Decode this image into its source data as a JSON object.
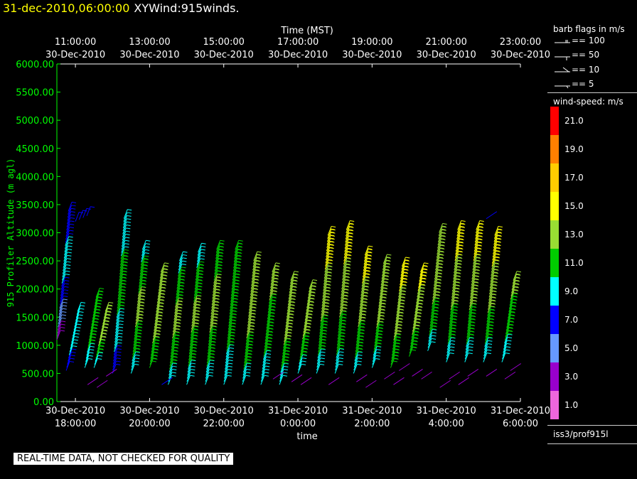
{
  "header": {
    "date": "31-dec-2010,06:00:00",
    "product": "XYWind:915winds."
  },
  "top_axis_title": "Time (MST)",
  "bottom_axis_title": "time",
  "banner": "REAL-TIME DATA, NOT CHECKED FOR QUALITY",
  "legend": {
    "barb_title": "barb flags in m/s",
    "barb_items": [
      "== 100",
      "== 50",
      "== 10",
      "== 5"
    ],
    "speed_title": "wind-speed: m/s",
    "speed_labels": [
      "21.0",
      "19.0",
      "17.0",
      "15.0",
      "13.0",
      "11.0",
      "9.0",
      "7.0",
      "5.0",
      "3.0",
      "1.0"
    ],
    "speed_colors": [
      "#ff0000",
      "#ff7f00",
      "#ffcc00",
      "#ffff00",
      "#99dd33",
      "#00cc00",
      "#00ffff",
      "#0000ff",
      "#6699ff",
      "#9900cc",
      "#ee66dd"
    ],
    "source": "iss3/prof915l"
  },
  "chart_data": {
    "type": "wind-barb",
    "title": "XYWind:915winds.",
    "xlabel": "time",
    "x2label": "Time (MST)",
    "ylabel": "915 Profiler Altitude (m agl)",
    "ylim": [
      0,
      6000
    ],
    "yticks": [
      "0.00",
      "500.00",
      "1000.00",
      "1500.00",
      "2000.00",
      "2500.00",
      "3000.00",
      "3500.00",
      "4000.00",
      "4500.00",
      "5000.00",
      "5500.00",
      "6000.00"
    ],
    "xlim_hours_utc": [
      17.5,
      30.0
    ],
    "bottom_ticks": [
      [
        "30-Dec-2010",
        "18:00:00"
      ],
      [
        "30-Dec-2010",
        "20:00:00"
      ],
      [
        "30-Dec-2010",
        "22:00:00"
      ],
      [
        "31-Dec-2010",
        "0:00:00"
      ],
      [
        "31-Dec-2010",
        "2:00:00"
      ],
      [
        "31-Dec-2010",
        "4:00:00"
      ],
      [
        "31-Dec-2010",
        "6:00:00"
      ]
    ],
    "top_ticks": [
      [
        "11:00:00",
        "30-Dec-2010"
      ],
      [
        "13:00:00",
        "30-Dec-2010"
      ],
      [
        "15:00:00",
        "30-Dec-2010"
      ],
      [
        "17:00:00",
        "30-Dec-2010"
      ],
      [
        "19:00:00",
        "30-Dec-2010"
      ],
      [
        "21:00:00",
        "30-Dec-2010"
      ],
      [
        "23:00:00",
        "30-Dec-2010"
      ]
    ],
    "profiles": [
      {
        "t": 17.5,
        "top": 3380,
        "bottom": 1100,
        "low": 3,
        "mid": 9,
        "high": 7
      },
      {
        "t": 17.75,
        "top": 1600,
        "bottom": 550,
        "low": 7,
        "mid": 9,
        "high": 9
      },
      {
        "t": 18.0,
        "top": 3300,
        "bottom": 3200,
        "low": 7,
        "mid": 7,
        "high": 7
      },
      {
        "t": 18.25,
        "top": 1850,
        "bottom": 600,
        "low": 9,
        "mid": 11,
        "high": 11
      },
      {
        "t": 18.5,
        "top": 1600,
        "bottom": 600,
        "low": 9,
        "mid": 13,
        "high": 13
      },
      {
        "t": 19.0,
        "top": 3250,
        "bottom": 500,
        "low": 7,
        "mid": 11,
        "high": 9
      },
      {
        "t": 19.5,
        "top": 2700,
        "bottom": 500,
        "low": 9,
        "mid": 13,
        "high": 9
      },
      {
        "t": 20.0,
        "top": 2300,
        "bottom": 600,
        "low": 11,
        "mid": 13,
        "high": 13
      },
      {
        "t": 20.5,
        "top": 2500,
        "bottom": 300,
        "low": 9,
        "mid": 13,
        "high": 9
      },
      {
        "t": 21.0,
        "top": 2650,
        "bottom": 300,
        "low": 9,
        "mid": 13,
        "high": 9
      },
      {
        "t": 21.5,
        "top": 2700,
        "bottom": 300,
        "low": 9,
        "mid": 13,
        "high": 11
      },
      {
        "t": 22.0,
        "top": 2700,
        "bottom": 300,
        "low": 9,
        "mid": 11,
        "high": 11
      },
      {
        "t": 22.5,
        "top": 2500,
        "bottom": 300,
        "low": 9,
        "mid": 13,
        "high": 13
      },
      {
        "t": 23.0,
        "top": 2300,
        "bottom": 300,
        "low": 9,
        "mid": 11,
        "high": 13
      },
      {
        "t": 23.5,
        "top": 2150,
        "bottom": 300,
        "low": 9,
        "mid": 13,
        "high": 13
      },
      {
        "t": 24.0,
        "top": 2000,
        "bottom": 500,
        "low": 9,
        "mid": 13,
        "high": 13
      },
      {
        "t": 24.5,
        "top": 2950,
        "bottom": 500,
        "low": 9,
        "mid": 13,
        "high": 15
      },
      {
        "t": 25.0,
        "top": 3050,
        "bottom": 500,
        "low": 9,
        "mid": 13,
        "high": 15
      },
      {
        "t": 25.5,
        "top": 2600,
        "bottom": 500,
        "low": 9,
        "mid": 13,
        "high": 15
      },
      {
        "t": 26.0,
        "top": 2450,
        "bottom": 600,
        "low": 9,
        "mid": 13,
        "high": 13
      },
      {
        "t": 26.5,
        "top": 2400,
        "bottom": 600,
        "low": 11,
        "mid": 13,
        "high": 15
      },
      {
        "t": 27.0,
        "top": 2300,
        "bottom": 800,
        "low": 11,
        "mid": 13,
        "high": 15
      },
      {
        "t": 27.5,
        "top": 3000,
        "bottom": 900,
        "low": 9,
        "mid": 13,
        "high": 13
      },
      {
        "t": 28.0,
        "top": 3050,
        "bottom": 700,
        "low": 9,
        "mid": 13,
        "high": 15
      },
      {
        "t": 28.5,
        "top": 3050,
        "bottom": 700,
        "low": 9,
        "mid": 13,
        "high": 15
      },
      {
        "t": 29.0,
        "top": 2950,
        "bottom": 700,
        "low": 9,
        "mid": 13,
        "high": 15
      },
      {
        "t": 29.5,
        "top": 2150,
        "bottom": 700,
        "low": 9,
        "mid": 11,
        "high": 13
      }
    ],
    "low_level_barbs": [
      {
        "t": 18.5,
        "alt": 350,
        "speed": 3
      },
      {
        "t": 18.75,
        "alt": 300,
        "speed": 3
      },
      {
        "t": 19.0,
        "alt": 500,
        "speed": 3
      },
      {
        "t": 20.5,
        "alt": 350,
        "speed": 7
      },
      {
        "t": 23.5,
        "alt": 450,
        "speed": 3
      },
      {
        "t": 24.0,
        "alt": 400,
        "speed": 3
      },
      {
        "t": 24.25,
        "alt": 350,
        "speed": 3
      },
      {
        "t": 25.0,
        "alt": 350,
        "speed": 3
      },
      {
        "t": 25.75,
        "alt": 400,
        "speed": 3
      },
      {
        "t": 26.0,
        "alt": 300,
        "speed": 3
      },
      {
        "t": 26.5,
        "alt": 450,
        "speed": 3
      },
      {
        "t": 26.75,
        "alt": 350,
        "speed": 3
      },
      {
        "t": 26.9,
        "alt": 600,
        "speed": 3
      },
      {
        "t": 27.25,
        "alt": 500,
        "speed": 3
      },
      {
        "t": 27.5,
        "alt": 450,
        "speed": 3
      },
      {
        "t": 28.0,
        "alt": 300,
        "speed": 3
      },
      {
        "t": 28.25,
        "alt": 450,
        "speed": 3
      },
      {
        "t": 28.5,
        "alt": 350,
        "speed": 3
      },
      {
        "t": 28.75,
        "alt": 500,
        "speed": 3
      },
      {
        "t": 29.25,
        "alt": 500,
        "speed": 3
      },
      {
        "t": 29.75,
        "alt": 450,
        "speed": 3
      },
      {
        "t": 29.9,
        "alt": 600,
        "speed": 3
      },
      {
        "t": 29.25,
        "alt": 3300,
        "speed": 7
      }
    ]
  }
}
